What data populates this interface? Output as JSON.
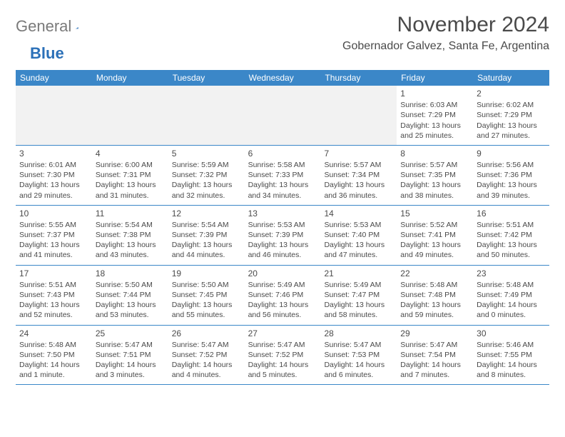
{
  "brand": {
    "gray": "General",
    "blue": "Blue"
  },
  "title": "November 2024",
  "location": "Gobernador Galvez, Santa Fe, Argentina",
  "colors": {
    "header_bg": "#3b87c8",
    "header_text": "#ffffff",
    "border": "#3b87c8",
    "body_text": "#4a4a4a",
    "logo_gray": "#7a7a7a",
    "logo_blue": "#2b70b8",
    "empty_bg": "#f2f2f2"
  },
  "day_names": [
    "Sunday",
    "Monday",
    "Tuesday",
    "Wednesday",
    "Thursday",
    "Friday",
    "Saturday"
  ],
  "weeks": [
    [
      null,
      null,
      null,
      null,
      null,
      {
        "n": "1",
        "sr": "Sunrise: 6:03 AM",
        "ss": "Sunset: 7:29 PM",
        "dl": "Daylight: 13 hours and 25 minutes."
      },
      {
        "n": "2",
        "sr": "Sunrise: 6:02 AM",
        "ss": "Sunset: 7:29 PM",
        "dl": "Daylight: 13 hours and 27 minutes."
      }
    ],
    [
      {
        "n": "3",
        "sr": "Sunrise: 6:01 AM",
        "ss": "Sunset: 7:30 PM",
        "dl": "Daylight: 13 hours and 29 minutes."
      },
      {
        "n": "4",
        "sr": "Sunrise: 6:00 AM",
        "ss": "Sunset: 7:31 PM",
        "dl": "Daylight: 13 hours and 31 minutes."
      },
      {
        "n": "5",
        "sr": "Sunrise: 5:59 AM",
        "ss": "Sunset: 7:32 PM",
        "dl": "Daylight: 13 hours and 32 minutes."
      },
      {
        "n": "6",
        "sr": "Sunrise: 5:58 AM",
        "ss": "Sunset: 7:33 PM",
        "dl": "Daylight: 13 hours and 34 minutes."
      },
      {
        "n": "7",
        "sr": "Sunrise: 5:57 AM",
        "ss": "Sunset: 7:34 PM",
        "dl": "Daylight: 13 hours and 36 minutes."
      },
      {
        "n": "8",
        "sr": "Sunrise: 5:57 AM",
        "ss": "Sunset: 7:35 PM",
        "dl": "Daylight: 13 hours and 38 minutes."
      },
      {
        "n": "9",
        "sr": "Sunrise: 5:56 AM",
        "ss": "Sunset: 7:36 PM",
        "dl": "Daylight: 13 hours and 39 minutes."
      }
    ],
    [
      {
        "n": "10",
        "sr": "Sunrise: 5:55 AM",
        "ss": "Sunset: 7:37 PM",
        "dl": "Daylight: 13 hours and 41 minutes."
      },
      {
        "n": "11",
        "sr": "Sunrise: 5:54 AM",
        "ss": "Sunset: 7:38 PM",
        "dl": "Daylight: 13 hours and 43 minutes."
      },
      {
        "n": "12",
        "sr": "Sunrise: 5:54 AM",
        "ss": "Sunset: 7:39 PM",
        "dl": "Daylight: 13 hours and 44 minutes."
      },
      {
        "n": "13",
        "sr": "Sunrise: 5:53 AM",
        "ss": "Sunset: 7:39 PM",
        "dl": "Daylight: 13 hours and 46 minutes."
      },
      {
        "n": "14",
        "sr": "Sunrise: 5:53 AM",
        "ss": "Sunset: 7:40 PM",
        "dl": "Daylight: 13 hours and 47 minutes."
      },
      {
        "n": "15",
        "sr": "Sunrise: 5:52 AM",
        "ss": "Sunset: 7:41 PM",
        "dl": "Daylight: 13 hours and 49 minutes."
      },
      {
        "n": "16",
        "sr": "Sunrise: 5:51 AM",
        "ss": "Sunset: 7:42 PM",
        "dl": "Daylight: 13 hours and 50 minutes."
      }
    ],
    [
      {
        "n": "17",
        "sr": "Sunrise: 5:51 AM",
        "ss": "Sunset: 7:43 PM",
        "dl": "Daylight: 13 hours and 52 minutes."
      },
      {
        "n": "18",
        "sr": "Sunrise: 5:50 AM",
        "ss": "Sunset: 7:44 PM",
        "dl": "Daylight: 13 hours and 53 minutes."
      },
      {
        "n": "19",
        "sr": "Sunrise: 5:50 AM",
        "ss": "Sunset: 7:45 PM",
        "dl": "Daylight: 13 hours and 55 minutes."
      },
      {
        "n": "20",
        "sr": "Sunrise: 5:49 AM",
        "ss": "Sunset: 7:46 PM",
        "dl": "Daylight: 13 hours and 56 minutes."
      },
      {
        "n": "21",
        "sr": "Sunrise: 5:49 AM",
        "ss": "Sunset: 7:47 PM",
        "dl": "Daylight: 13 hours and 58 minutes."
      },
      {
        "n": "22",
        "sr": "Sunrise: 5:48 AM",
        "ss": "Sunset: 7:48 PM",
        "dl": "Daylight: 13 hours and 59 minutes."
      },
      {
        "n": "23",
        "sr": "Sunrise: 5:48 AM",
        "ss": "Sunset: 7:49 PM",
        "dl": "Daylight: 14 hours and 0 minutes."
      }
    ],
    [
      {
        "n": "24",
        "sr": "Sunrise: 5:48 AM",
        "ss": "Sunset: 7:50 PM",
        "dl": "Daylight: 14 hours and 1 minute."
      },
      {
        "n": "25",
        "sr": "Sunrise: 5:47 AM",
        "ss": "Sunset: 7:51 PM",
        "dl": "Daylight: 14 hours and 3 minutes."
      },
      {
        "n": "26",
        "sr": "Sunrise: 5:47 AM",
        "ss": "Sunset: 7:52 PM",
        "dl": "Daylight: 14 hours and 4 minutes."
      },
      {
        "n": "27",
        "sr": "Sunrise: 5:47 AM",
        "ss": "Sunset: 7:52 PM",
        "dl": "Daylight: 14 hours and 5 minutes."
      },
      {
        "n": "28",
        "sr": "Sunrise: 5:47 AM",
        "ss": "Sunset: 7:53 PM",
        "dl": "Daylight: 14 hours and 6 minutes."
      },
      {
        "n": "29",
        "sr": "Sunrise: 5:47 AM",
        "ss": "Sunset: 7:54 PM",
        "dl": "Daylight: 14 hours and 7 minutes."
      },
      {
        "n": "30",
        "sr": "Sunrise: 5:46 AM",
        "ss": "Sunset: 7:55 PM",
        "dl": "Daylight: 14 hours and 8 minutes."
      }
    ]
  ]
}
